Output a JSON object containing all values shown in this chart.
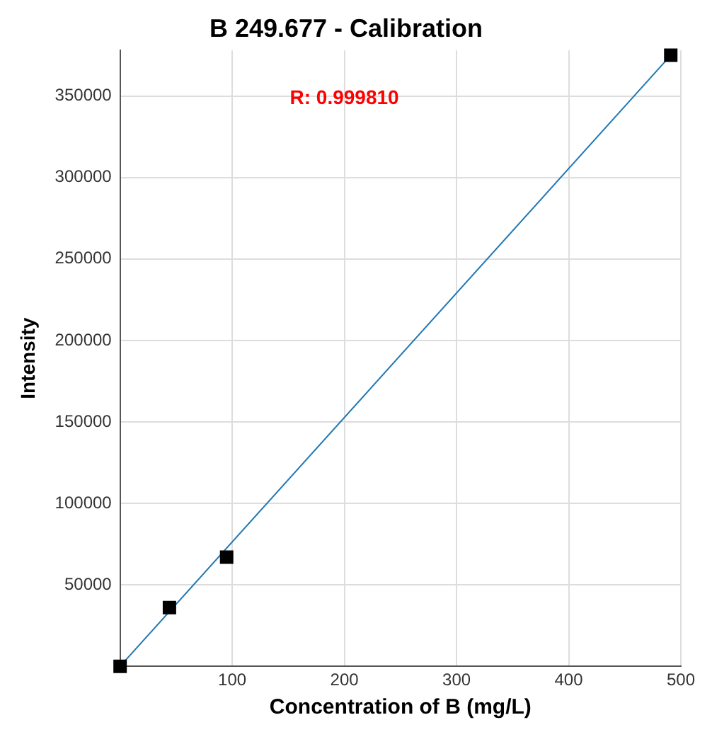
{
  "chart_data": {
    "type": "scatter",
    "title": "B 249.677 - Calibration",
    "xlabel": "Concentration of B (mg/L)",
    "ylabel": "Intensity",
    "annotations": [
      "R: 0.999810"
    ],
    "series": [
      {
        "type": "scatter",
        "color": "#000000",
        "x": [
          0,
          44,
          95,
          491
        ],
        "values": [
          0,
          36000,
          67000,
          375000
        ],
        "marker": "square"
      },
      {
        "type": "line",
        "color": "#1f77b4",
        "x": [
          0,
          491
        ],
        "values": [
          0,
          375000
        ],
        "marker": "none"
      }
    ],
    "xlim": [
      0,
      500
    ],
    "xticks": [
      100,
      200,
      300,
      400,
      500
    ],
    "ylim": [
      0,
      378000
    ],
    "yticks": [
      50000,
      100000,
      150000,
      200000,
      250000,
      300000,
      350000
    ],
    "grid": true,
    "legend": false
  }
}
